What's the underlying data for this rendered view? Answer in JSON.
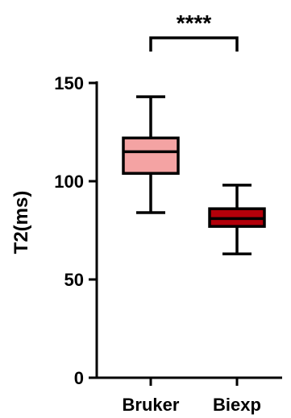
{
  "chart_data": {
    "type": "box",
    "ylabel": "T2(ms)",
    "xlabel": "",
    "ylim": [
      0,
      150
    ],
    "yticks": [
      0,
      50,
      100,
      150
    ],
    "yticklabels": [
      "0",
      "50",
      "100",
      "150"
    ],
    "categories": [
      "Bruker",
      "Biexp"
    ],
    "series": [
      {
        "name": "Bruker",
        "min": 84,
        "q1": 104,
        "median": 115,
        "q3": 122,
        "max": 143,
        "color": "#f4a3a3"
      },
      {
        "name": "Biexp",
        "min": 63,
        "q1": 77,
        "median": 81,
        "q3": 86,
        "max": 98,
        "color": "#b3000a"
      }
    ],
    "significance": {
      "label": "****",
      "from": "Bruker",
      "to": "Biexp"
    }
  }
}
